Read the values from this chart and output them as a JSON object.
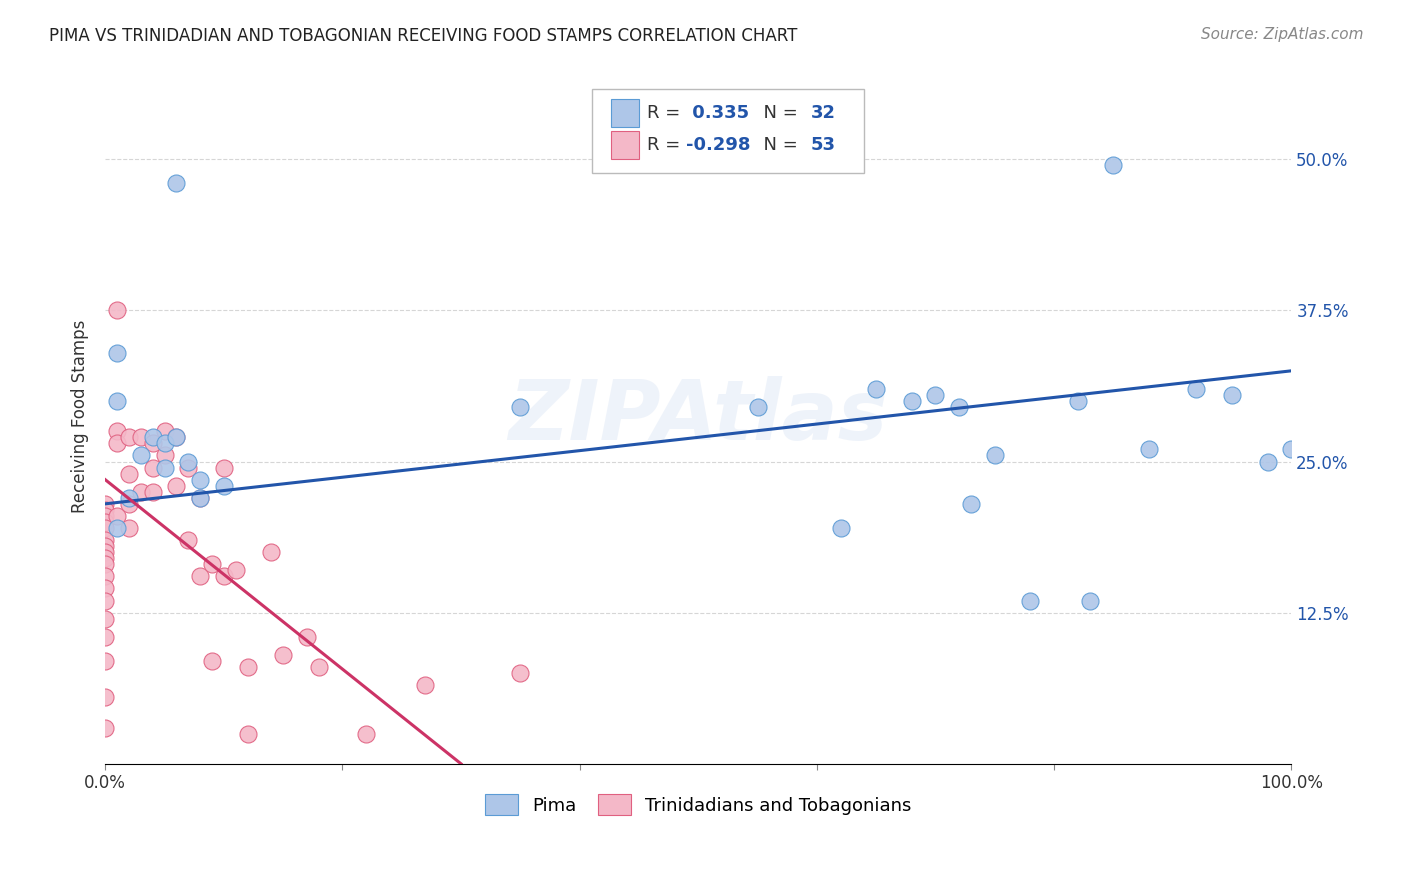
{
  "title": "PIMA VS TRINIDADIAN AND TOBAGONIAN RECEIVING FOOD STAMPS CORRELATION CHART",
  "source": "Source: ZipAtlas.com",
  "ylabel": "Receiving Food Stamps",
  "xlim": [
    0.0,
    1.0
  ],
  "ylim": [
    0.0,
    0.575
  ],
  "ytick_labels": [
    "12.5%",
    "25.0%",
    "37.5%",
    "50.0%"
  ],
  "ytick_positions": [
    0.125,
    0.25,
    0.375,
    0.5
  ],
  "legend_labels": [
    "Pima",
    "Trinidadians and Tobagonians"
  ],
  "pima_color": "#aec6e8",
  "tnt_color": "#f4b8c8",
  "pima_edge_color": "#5b9bd5",
  "tnt_edge_color": "#e06080",
  "pima_line_color": "#2255aa",
  "tnt_line_color": "#cc3366",
  "r_pima": "0.335",
  "n_pima": "32",
  "r_tnt": "-0.298",
  "n_tnt": "53",
  "watermark": "ZIPAtlas",
  "background_color": "#ffffff",
  "grid_color": "#cccccc",
  "pima_line_y0": 0.215,
  "pima_line_y1": 0.325,
  "tnt_line_x0": 0.0,
  "tnt_line_y0": 0.235,
  "tnt_line_x_end": 0.3,
  "tnt_line_y_end": 0.0,
  "pima_x": [
    0.01,
    0.06,
    0.01,
    0.01,
    0.02,
    0.03,
    0.04,
    0.05,
    0.05,
    0.06,
    0.07,
    0.08,
    0.08,
    0.1,
    0.35,
    0.55,
    0.65,
    0.68,
    0.7,
    0.72,
    0.75,
    0.78,
    0.82,
    0.85,
    0.88,
    0.92,
    0.95,
    0.98,
    1.0,
    0.62,
    0.73,
    0.83
  ],
  "pima_y": [
    0.34,
    0.48,
    0.3,
    0.195,
    0.22,
    0.255,
    0.27,
    0.265,
    0.245,
    0.27,
    0.25,
    0.235,
    0.22,
    0.23,
    0.295,
    0.295,
    0.31,
    0.3,
    0.305,
    0.295,
    0.255,
    0.135,
    0.3,
    0.495,
    0.26,
    0.31,
    0.305,
    0.25,
    0.26,
    0.195,
    0.215,
    0.135
  ],
  "tnt_x": [
    0.0,
    0.0,
    0.0,
    0.0,
    0.0,
    0.0,
    0.0,
    0.0,
    0.0,
    0.0,
    0.0,
    0.0,
    0.0,
    0.0,
    0.0,
    0.0,
    0.0,
    0.0,
    0.01,
    0.01,
    0.01,
    0.01,
    0.02,
    0.02,
    0.02,
    0.02,
    0.03,
    0.03,
    0.04,
    0.04,
    0.04,
    0.05,
    0.05,
    0.06,
    0.06,
    0.07,
    0.07,
    0.08,
    0.08,
    0.09,
    0.09,
    0.1,
    0.1,
    0.11,
    0.12,
    0.12,
    0.14,
    0.15,
    0.17,
    0.18,
    0.22,
    0.27,
    0.35
  ],
  "tnt_y": [
    0.215,
    0.21,
    0.205,
    0.2,
    0.195,
    0.185,
    0.18,
    0.175,
    0.17,
    0.165,
    0.155,
    0.145,
    0.135,
    0.12,
    0.105,
    0.085,
    0.055,
    0.03,
    0.375,
    0.275,
    0.265,
    0.205,
    0.27,
    0.24,
    0.215,
    0.195,
    0.27,
    0.225,
    0.265,
    0.245,
    0.225,
    0.275,
    0.255,
    0.27,
    0.23,
    0.245,
    0.185,
    0.22,
    0.155,
    0.165,
    0.085,
    0.245,
    0.155,
    0.16,
    0.08,
    0.025,
    0.175,
    0.09,
    0.105,
    0.08,
    0.025,
    0.065,
    0.075
  ]
}
